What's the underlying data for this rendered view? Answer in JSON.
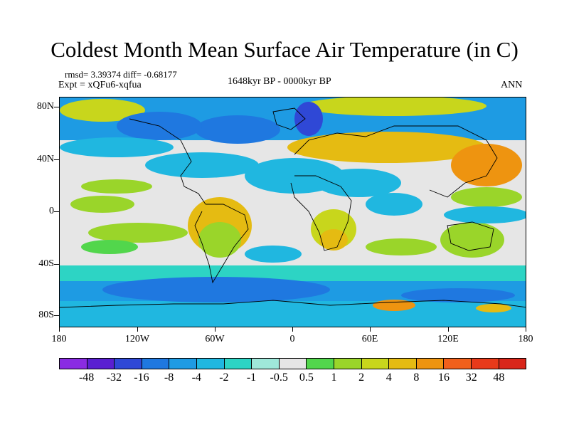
{
  "title": "Coldest Month Mean Surface Air Temperature (in C)",
  "stats": "rmsd= 3.39374 diff= -0.68177",
  "expt": "Expt = xQFu6-xqfua",
  "period": "1648kyr BP - 0000kyr BP",
  "season": "ANN",
  "lat_labels": [
    "80N",
    "40N",
    "0",
    "40S",
    "80S"
  ],
  "lon_labels": [
    "180",
    "120W",
    "60W",
    "0",
    "60E",
    "120E",
    "180"
  ],
  "colorbar": {
    "labels": [
      "-48",
      "-32",
      "-16",
      "-8",
      "-4",
      "-2",
      "-1",
      "-0.5",
      "0.5",
      "1",
      "2",
      "4",
      "8",
      "16",
      "32",
      "48"
    ],
    "colors": [
      "#8a2be2",
      "#5a1fd1",
      "#2f48d6",
      "#1f78e0",
      "#1e9be3",
      "#20b7e0",
      "#2dd4c4",
      "#9fe8da",
      "#e6e6e6",
      "#52d64c",
      "#9ad52a",
      "#c8d61c",
      "#e5bb12",
      "#ee9410",
      "#f0601c",
      "#e83a1a",
      "#d9261a"
    ]
  }
}
